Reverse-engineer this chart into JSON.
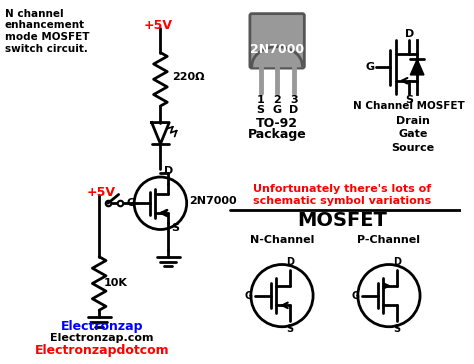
{
  "bg_color": "#ffffff",
  "title": "N channel\nenhancement\nmode MOSFET\nswitch circuit.",
  "plus5v_1": "+5V",
  "plus5v_2": "+5V",
  "resistor1": "220Ω",
  "resistor2": "10K",
  "transistor_label": "2N7000",
  "package_label": "2N7000",
  "pin1": "1",
  "pin2": "2",
  "pin3": "3",
  "pin1s": "S",
  "pin2g": "G",
  "pin3d": "D",
  "package_type": "TO-92",
  "package_word": "Package",
  "nchannel_title": "N Channel MOSFET",
  "drain_lbl": "Drain",
  "gate_lbl": "Gate",
  "source_lbl": "Source",
  "warning_line1": "Unfortunately there's lots of",
  "warning_line2": "schematic symbol variations",
  "mosfet_title": "MOSFET",
  "nchannel_lbl": "N-Channel",
  "pchannel_lbl": "P-Channel",
  "brand1": "Electronzap",
  "brand2": "Electronzap.com",
  "brand3": "Electronzapdotcom",
  "color_black": "#000000",
  "color_red": "#ff0000",
  "color_blue": "#0000ff",
  "color_gray": "#999999",
  "color_darkgray": "#555555",
  "color_white": "#ffffff"
}
